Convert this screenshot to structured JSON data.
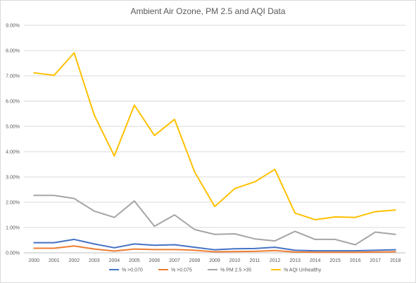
{
  "chart_data": {
    "type": "line",
    "title": "Ambient Air Ozone, PM 2.5 and AQI Data",
    "xlabel": "",
    "ylabel": "",
    "ylim": [
      0,
      0.09
    ],
    "y_tick_labels": [
      "0.00%",
      "1.00%",
      "2.00%",
      "3.00%",
      "4.00%",
      "5.00%",
      "6.00%",
      "7.00%",
      "8.00%",
      "9.00%"
    ],
    "grid": true,
    "legend_position": "bottom",
    "categories": [
      "2000",
      "2001",
      "2002",
      "2003",
      "2004",
      "2005",
      "2006",
      "2007",
      "2008",
      "2009",
      "2010",
      "2011",
      "2012",
      "2013",
      "2014",
      "2015",
      "2016",
      "2017",
      "2018"
    ],
    "series": [
      {
        "name": "% >0.070",
        "color": "#4472C4",
        "values": [
          0.004,
          0.004,
          0.0053,
          0.0035,
          0.002,
          0.0035,
          0.003,
          0.0032,
          0.0022,
          0.0012,
          0.0016,
          0.0017,
          0.0022,
          0.001,
          0.0008,
          0.0008,
          0.0008,
          0.001,
          0.0012
        ]
      },
      {
        "name": "% >0.075",
        "color": "#ED7D31",
        "values": [
          0.0018,
          0.0018,
          0.0027,
          0.0015,
          0.0007,
          0.0015,
          0.0013,
          0.0013,
          0.001,
          0.0004,
          0.0005,
          0.0006,
          0.0009,
          0.0003,
          0.0002,
          0.0002,
          0.0002,
          0.0003,
          0.0004
        ]
      },
      {
        "name": "% PM 2.5 >35",
        "color": "#A5A5A5",
        "values": [
          0.0227,
          0.0227,
          0.0215,
          0.0165,
          0.014,
          0.0205,
          0.0105,
          0.015,
          0.0092,
          0.0073,
          0.0075,
          0.0055,
          0.0047,
          0.0085,
          0.0053,
          0.0053,
          0.0032,
          0.0082,
          0.0073
        ]
      },
      {
        "name": "% AQI Unhealthy",
        "color": "#FFC000",
        "values": [
          0.0712,
          0.0702,
          0.0791,
          0.0545,
          0.0383,
          0.0584,
          0.0464,
          0.0528,
          0.032,
          0.0183,
          0.0254,
          0.0281,
          0.033,
          0.0157,
          0.0131,
          0.0142,
          0.014,
          0.0163,
          0.0169
        ]
      }
    ]
  }
}
